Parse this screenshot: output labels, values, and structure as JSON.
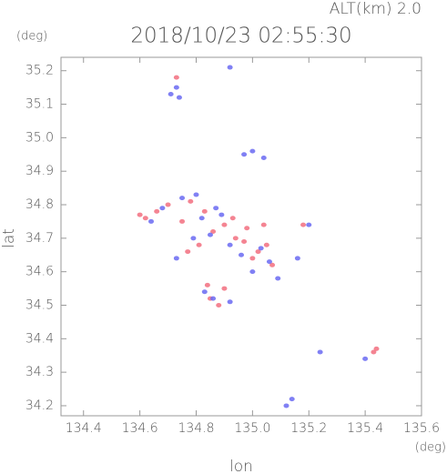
{
  "chart_data": {
    "type": "scatter",
    "title": "2018/10/23 02:55:30",
    "subtitle": "ALT(km) 2.0",
    "y_unit": "(deg)",
    "x_unit": "(deg)",
    "xlabel": "lon",
    "ylabel": "lat",
    "xlim": [
      134.32,
      135.6
    ],
    "ylim": [
      34.17,
      35.24
    ],
    "xticks": [
      134.4,
      134.6,
      134.8,
      {
        "value": 135,
        "label": "135.0"
      },
      135.2,
      135.4,
      135.6
    ],
    "yticks": [
      35.2,
      35.1,
      {
        "value": 35,
        "label": "35.0"
      },
      34.9,
      34.8,
      34.7,
      34.6,
      34.5,
      34.4,
      34.3,
      34.2
    ],
    "series": [
      {
        "color": "#f26f7f",
        "x": [
          134.73,
          134.6,
          134.62,
          134.66,
          134.7,
          134.78,
          134.83,
          134.86,
          134.9,
          134.94,
          134.98,
          135.02,
          135.05,
          135.07,
          135.04,
          135.18,
          134.77,
          134.85,
          134.88,
          134.9,
          134.84,
          135.43,
          135.44,
          134.97,
          135.0,
          134.93,
          134.75,
          134.81
        ],
        "values": [
          35.18,
          34.77,
          34.76,
          34.78,
          34.8,
          34.81,
          34.78,
          34.72,
          34.74,
          34.7,
          34.73,
          34.66,
          34.68,
          34.62,
          34.74,
          34.74,
          34.66,
          34.52,
          34.5,
          34.55,
          34.56,
          34.36,
          34.37,
          34.69,
          34.64,
          34.76,
          34.75,
          34.68
        ]
      },
      {
        "color": "#6a6af2",
        "x": [
          134.71,
          134.73,
          134.74,
          134.92,
          134.97,
          135.0,
          135.04,
          134.64,
          134.68,
          134.75,
          134.8,
          134.82,
          134.85,
          134.89,
          134.92,
          134.96,
          135.0,
          135.03,
          135.06,
          135.09,
          134.83,
          134.86,
          134.92,
          134.73,
          135.16,
          135.24,
          135.4,
          135.12,
          135.14,
          135.2,
          134.87,
          134.79
        ],
        "values": [
          35.13,
          35.15,
          35.12,
          35.21,
          34.95,
          34.96,
          34.94,
          34.75,
          34.79,
          34.82,
          34.83,
          34.76,
          34.71,
          34.77,
          34.68,
          34.65,
          34.6,
          34.67,
          34.63,
          34.58,
          34.54,
          34.52,
          34.51,
          34.64,
          34.64,
          34.36,
          34.34,
          34.2,
          34.22,
          34.74,
          34.79,
          34.7
        ]
      }
    ]
  }
}
